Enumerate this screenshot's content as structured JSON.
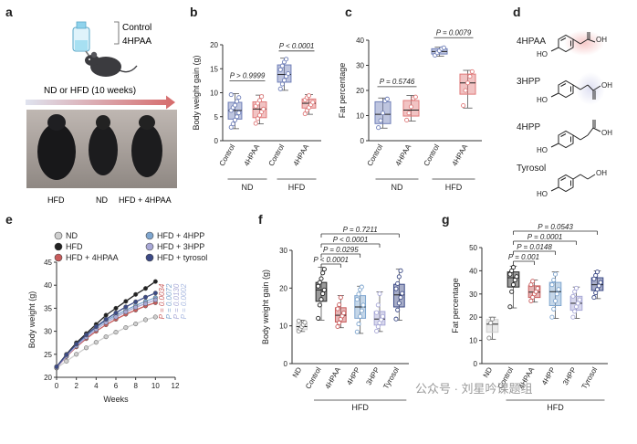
{
  "panels": {
    "a": {
      "letter": "a",
      "legend": [
        "Control",
        "4HPAA"
      ],
      "arrow_label": "ND or HFD (10 weeks)",
      "photo_labels": [
        "HFD",
        "ND",
        "HFD + 4HPAA"
      ]
    },
    "b": {
      "letter": "b"
    },
    "c": {
      "letter": "c"
    },
    "d": {
      "letter": "d",
      "compounds": [
        "4HPAA",
        "3HPP",
        "4HPP",
        "Tyrosol"
      ],
      "groups": [
        "HO",
        "OH"
      ]
    },
    "e": {
      "letter": "e"
    },
    "f": {
      "letter": "f"
    },
    "g": {
      "letter": "g"
    }
  },
  "watermark": "公众号 · 刘星吟课题组",
  "colors": {
    "control_blue": "#6f7fb8",
    "hpaa_red": "#e07a7a",
    "hfd_black": "#222222",
    "hpp4_blue": "#7fa6cf",
    "hpp3_lavender": "#a8a8d6",
    "tyrosol_navy": "#3c4a86",
    "nd_gray": "#cfcfcf"
  },
  "chart_data": [
    {
      "panel": "b",
      "type": "box",
      "title": "",
      "ylabel": "Body weight gain (g)",
      "ylim": [
        0,
        20
      ],
      "yticks": [
        0,
        5,
        10,
        15,
        20
      ],
      "categories": [
        "Control",
        "4HPAA",
        "Control",
        "4HPAA"
      ],
      "groups": [
        {
          "label": "ND",
          "span": [
            0,
            1
          ]
        },
        {
          "label": "HFD",
          "span": [
            2,
            3
          ]
        }
      ],
      "boxes": [
        {
          "min": 2.5,
          "q1": 4.5,
          "median": 6.3,
          "q3": 8.0,
          "max": 9.8,
          "color": "#6f7fb8",
          "points": [
            2.8,
            3.5,
            4.3,
            5.0,
            5.8,
            6.3,
            6.9,
            7.4,
            8.2,
            9.0,
            9.6
          ]
        },
        {
          "min": 3.5,
          "q1": 4.8,
          "median": 6.6,
          "q3": 8.1,
          "max": 9.5,
          "color": "#e07a7a",
          "points": [
            3.6,
            4.6,
            5.3,
            6.0,
            6.6,
            7.2,
            7.8,
            8.4,
            9.2
          ]
        },
        {
          "min": 10.5,
          "q1": 12.2,
          "median": 13.8,
          "q3": 15.8,
          "max": 17.2,
          "color": "#6f7fb8",
          "points": [
            10.8,
            11.8,
            12.6,
            13.4,
            14.0,
            14.8,
            15.6,
            16.4,
            17.0
          ]
        },
        {
          "min": 5.5,
          "q1": 6.8,
          "median": 7.8,
          "q3": 8.7,
          "max": 9.6,
          "color": "#e07a7a",
          "points": [
            5.6,
            6.3,
            6.9,
            7.5,
            8.0,
            8.5,
            9.0,
            9.4
          ]
        }
      ],
      "annotations": [
        {
          "text": "P > 0.9999",
          "between": [
            0,
            1
          ],
          "y": 12.5
        },
        {
          "text": "P < 0.0001",
          "between": [
            2,
            3
          ],
          "y": 18.7
        }
      ]
    },
    {
      "panel": "c",
      "type": "box",
      "title": "",
      "ylabel": "Fat percentage",
      "ylim": [
        0,
        40
      ],
      "yticks": [
        0,
        10,
        20,
        30,
        40
      ],
      "categories": [
        "Control",
        "4HPAA",
        "Control",
        "4HPAA"
      ],
      "groups": [
        {
          "label": "ND",
          "span": [
            0,
            1
          ]
        },
        {
          "label": "HFD",
          "span": [
            2,
            3
          ]
        }
      ],
      "boxes": [
        {
          "min": 5.0,
          "q1": 6.8,
          "median": 10.5,
          "q3": 15.5,
          "max": 17.0,
          "color": "#6f7fb8",
          "points": [
            5.2,
            8.0,
            11.0,
            15.8,
            16.6
          ]
        },
        {
          "min": 7.8,
          "q1": 9.8,
          "median": 12.2,
          "q3": 16.0,
          "max": 18.0,
          "color": "#e07a7a",
          "points": [
            8.2,
            11.0,
            13.5,
            16.8,
            17.4
          ]
        },
        {
          "min": 33.6,
          "q1": 34.5,
          "median": 35.5,
          "q3": 36.6,
          "max": 37.2,
          "color": "#6f7fb8",
          "points": [
            34.0,
            35.0,
            35.8,
            36.6,
            37.0
          ]
        },
        {
          "min": 13.0,
          "q1": 18.5,
          "median": 23.0,
          "q3": 26.5,
          "max": 28.0,
          "color": "#e07a7a",
          "points": [
            14.0,
            20.0,
            23.0,
            25.6,
            27.5
          ]
        }
      ],
      "annotations": [
        {
          "text": "P = 0.5746",
          "between": [
            0,
            1
          ],
          "y": 21.5
        },
        {
          "text": "P = 0.0079",
          "between": [
            2,
            3
          ],
          "y": 41.0
        }
      ]
    },
    {
      "panel": "e",
      "type": "line",
      "xlabel": "Weeks",
      "ylabel": "Body weight (g)",
      "xlim": [
        0,
        12
      ],
      "ylim": [
        20,
        45
      ],
      "xticks": [
        0,
        2,
        4,
        6,
        8,
        10,
        12
      ],
      "yticks": [
        20,
        25,
        30,
        35,
        40,
        45
      ],
      "x": [
        0,
        1,
        2,
        3,
        4,
        5,
        6,
        7,
        8,
        9,
        10
      ],
      "series": [
        {
          "name": "ND",
          "color": "#cfcfcf",
          "values": [
            22.0,
            23.5,
            25.0,
            26.4,
            27.6,
            28.8,
            29.8,
            30.8,
            31.6,
            32.5,
            33.1
          ]
        },
        {
          "name": "HFD",
          "color": "#222222",
          "values": [
            22.3,
            25.0,
            27.5,
            29.5,
            31.5,
            33.5,
            35.0,
            36.5,
            38.0,
            39.3,
            40.8
          ]
        },
        {
          "name": "HFD + 4HPAA",
          "color": "#c85c5c",
          "values": [
            22.1,
            24.5,
            26.6,
            28.4,
            30.0,
            31.4,
            32.6,
            33.7,
            34.6,
            35.5,
            36.2
          ]
        },
        {
          "name": "HFD + 4HPP",
          "color": "#7fa6cf",
          "values": [
            22.2,
            24.8,
            27.0,
            29.0,
            30.8,
            32.3,
            33.5,
            34.6,
            35.6,
            36.5,
            37.3
          ]
        },
        {
          "name": "HFD + 3HPP",
          "color": "#a8a8d6",
          "values": [
            22.1,
            24.6,
            26.8,
            28.7,
            30.4,
            31.9,
            33.1,
            34.2,
            35.2,
            36.0,
            36.8
          ]
        },
        {
          "name": "HFD + tyrosol",
          "color": "#3c4a86",
          "values": [
            22.3,
            24.9,
            27.2,
            29.2,
            31.0,
            32.6,
            34.0,
            35.3,
            36.4,
            37.4,
            38.3
          ]
        }
      ],
      "right_labels": [
        {
          "text": "P = 0.0034",
          "color": "#c85c5c"
        },
        {
          "text": "P = 0.0072",
          "color": "#7fa6cf"
        },
        {
          "text": "P = 0.0130",
          "color": "#a8a8d6"
        },
        {
          "text": "P = 0.0002",
          "color": "#a8b8e0"
        }
      ]
    },
    {
      "panel": "f",
      "type": "box",
      "ylabel": "Body weight gain (g)",
      "ylim": [
        0,
        30
      ],
      "yticks": [
        0,
        10,
        20,
        30
      ],
      "categories": [
        "ND",
        "Control",
        "4HPAA",
        "4HPP",
        "3HPP",
        "Tyrosol"
      ],
      "group_label": "HFD",
      "boxes": [
        {
          "min": 8.5,
          "q1": 9.0,
          "median": 9.8,
          "q3": 10.6,
          "max": 11.5,
          "color": "#cfcfcf",
          "points": [
            8.6,
            9.2,
            9.8,
            10.3,
            10.9,
            11.3
          ]
        },
        {
          "min": 11.5,
          "q1": 16.5,
          "median": 19.5,
          "q3": 21.5,
          "max": 25.5,
          "color": "#222222",
          "points": [
            12.0,
            15.5,
            17.0,
            18.5,
            19.5,
            20.5,
            21.5,
            22.5,
            24.0,
            25.0
          ]
        },
        {
          "min": 9.5,
          "q1": 11.0,
          "median": 12.8,
          "q3": 14.8,
          "max": 18.0,
          "color": "#c85c5c",
          "points": [
            9.8,
            10.8,
            11.8,
            12.6,
            13.4,
            14.5,
            15.6,
            17.5
          ]
        },
        {
          "min": 8.0,
          "q1": 12.0,
          "median": 15.0,
          "q3": 18.0,
          "max": 20.5,
          "color": "#7fa6cf",
          "points": [
            8.4,
            10.5,
            12.5,
            14.0,
            15.5,
            17.0,
            18.4,
            19.6,
            20.3
          ]
        },
        {
          "min": 8.5,
          "q1": 10.2,
          "median": 11.8,
          "q3": 13.8,
          "max": 19.0,
          "color": "#a8a8d6",
          "points": [
            8.6,
            9.8,
            10.8,
            11.6,
            12.5,
            13.5,
            15.5,
            18.5
          ]
        },
        {
          "min": 11.5,
          "q1": 15.0,
          "median": 18.2,
          "q3": 21.0,
          "max": 25.0,
          "color": "#3c4a86",
          "points": [
            11.8,
            14.2,
            16.0,
            17.5,
            18.6,
            19.8,
            21.2,
            23.0,
            24.6
          ]
        }
      ],
      "annotations": [
        {
          "text": "P < 0.0001",
          "between": [
            1,
            2
          ],
          "level": 0
        },
        {
          "text": "P = 0.0295",
          "between": [
            1,
            3
          ],
          "level": 1
        },
        {
          "text": "P < 0.0001",
          "between": [
            1,
            4
          ],
          "level": 2
        },
        {
          "text": "P = 0.7211",
          "between": [
            1,
            5
          ],
          "level": 3
        }
      ]
    },
    {
      "panel": "g",
      "type": "box",
      "ylabel": "Fat percentage",
      "ylim": [
        0,
        50
      ],
      "yticks": [
        0,
        10,
        20,
        30,
        40,
        50
      ],
      "categories": [
        "ND",
        "Control",
        "4HPAA",
        "4HPP",
        "3HPP",
        "Tyrosol"
      ],
      "group_label": "HFD",
      "boxes": [
        {
          "min": 10.5,
          "q1": 13.5,
          "median": 17.0,
          "q3": 19.0,
          "max": 20.0,
          "color": "#cfcfcf",
          "points": [
            11.0,
            17.5,
            19.2
          ]
        },
        {
          "min": 24.0,
          "q1": 33.0,
          "median": 37.0,
          "q3": 39.5,
          "max": 42.0,
          "color": "#222222",
          "points": [
            24.5,
            31.0,
            34.0,
            36.0,
            37.5,
            38.5,
            40.0,
            41.5
          ]
        },
        {
          "min": 26.5,
          "q1": 28.5,
          "median": 30.8,
          "q3": 33.5,
          "max": 36.0,
          "color": "#c85c5c",
          "points": [
            27.0,
            28.6,
            30.0,
            31.0,
            32.4,
            34.0,
            35.5
          ]
        },
        {
          "min": 19.5,
          "q1": 25.0,
          "median": 31.0,
          "q3": 35.0,
          "max": 39.5,
          "color": "#7fa6cf",
          "points": [
            20.0,
            23.5,
            27.0,
            30.0,
            32.0,
            34.0,
            36.0,
            38.5
          ]
        },
        {
          "min": 19.5,
          "q1": 23.0,
          "median": 26.0,
          "q3": 29.0,
          "max": 33.0,
          "color": "#a8a8d6",
          "points": [
            20.0,
            22.5,
            24.5,
            26.0,
            27.5,
            29.0,
            31.0,
            32.5
          ]
        },
        {
          "min": 28.0,
          "q1": 31.5,
          "median": 34.0,
          "q3": 37.0,
          "max": 40.0,
          "color": "#3c4a86",
          "points": [
            28.5,
            30.5,
            32.0,
            33.5,
            35.0,
            36.5,
            38.0,
            39.5
          ]
        }
      ],
      "annotations": [
        {
          "text": "P = 0.001",
          "between": [
            1,
            2
          ],
          "level": 0
        },
        {
          "text": "P = 0.0148",
          "between": [
            1,
            3
          ],
          "level": 1
        },
        {
          "text": "P = 0.0001",
          "between": [
            1,
            4
          ],
          "level": 2
        },
        {
          "text": "P = 0.0543",
          "between": [
            1,
            5
          ],
          "level": 3
        }
      ]
    }
  ]
}
